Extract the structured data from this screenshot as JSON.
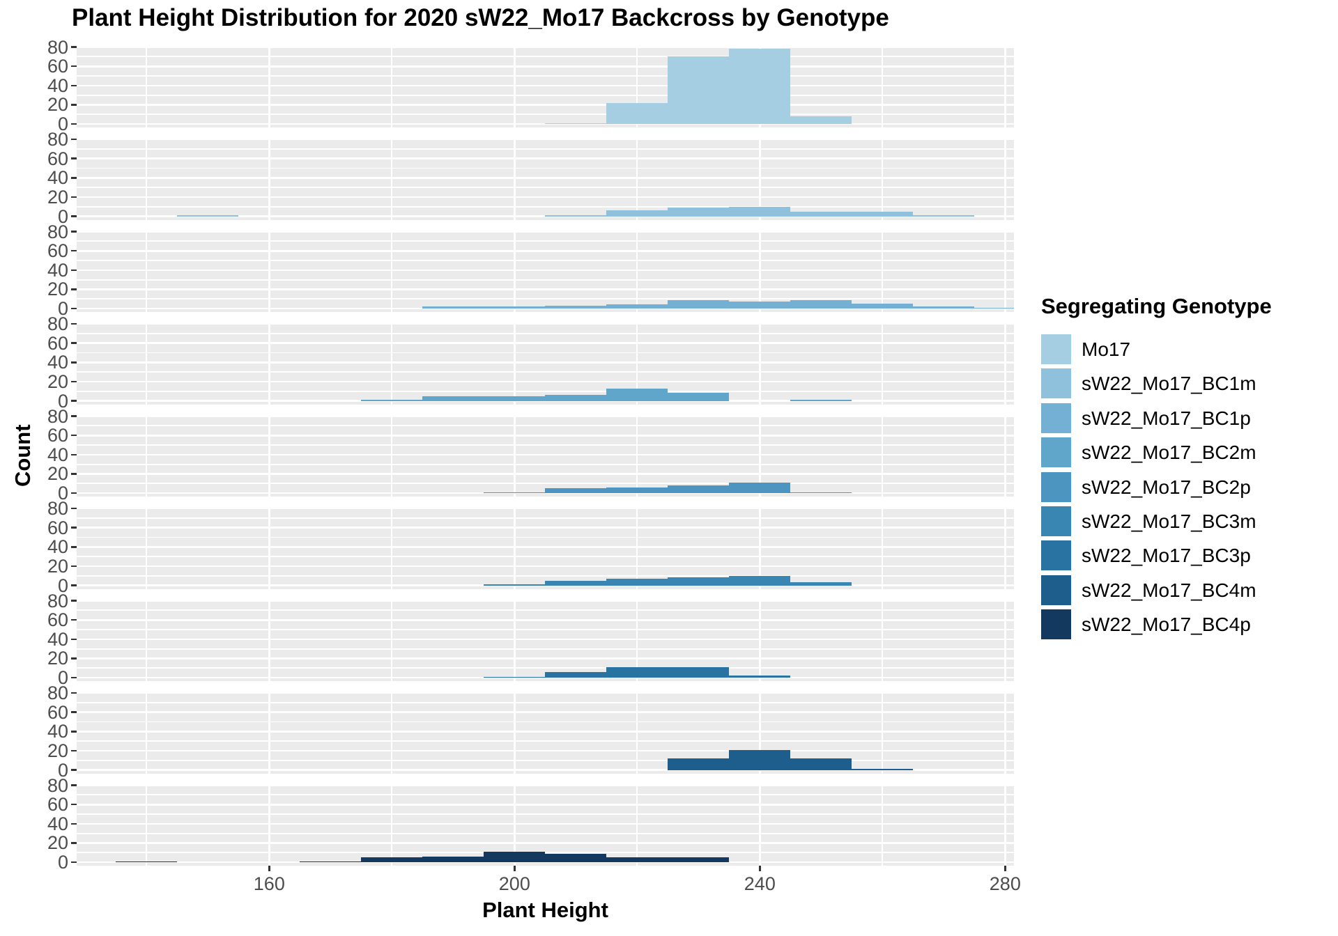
{
  "title": "Plant Height Distribution for 2020 sW22_Mo17 Backcross by Genotype",
  "axes": {
    "x_title": "Plant Height",
    "y_title": "Count",
    "x_tick_labels": [
      "160",
      "200",
      "240",
      "280"
    ],
    "x_tick_values": [
      160,
      200,
      240,
      280
    ],
    "y_tick_labels": [
      "80",
      "60",
      "40",
      "20",
      "0"
    ],
    "y_tick_values": [
      80,
      60,
      40,
      20,
      0
    ],
    "tick_label_color": "#4d4d4d"
  },
  "legend": {
    "title": "Segregating Genotype",
    "entries": [
      {
        "label": "Mo17",
        "color": "#a6cee3"
      },
      {
        "label": "sW22_Mo17_BC1m",
        "color": "#8fc1dc"
      },
      {
        "label": "sW22_Mo17_BC1p",
        "color": "#74b0d3"
      },
      {
        "label": "sW22_Mo17_BC2m",
        "color": "#60a5ca"
      },
      {
        "label": "sW22_Mo17_BC2p",
        "color": "#4c95c0"
      },
      {
        "label": "sW22_Mo17_BC3m",
        "color": "#3a86b3"
      },
      {
        "label": "sW22_Mo17_BC3p",
        "color": "#2973a3"
      },
      {
        "label": "sW22_Mo17_BC4m",
        "color": "#1e5e8d"
      },
      {
        "label": "sW22_Mo17_BC4p",
        "color": "#14395e"
      }
    ]
  },
  "chart_data": {
    "type": "bar",
    "subtype": "faceted-histogram",
    "title": "Plant Height Distribution for 2020 sW22_Mo17 Backcross by Genotype",
    "xlabel": "Plant Height",
    "ylabel": "Count",
    "bin_width": 10,
    "x_domain": [
      128.6,
      281.5
    ],
    "y_domain_per_panel": [
      0,
      82
    ],
    "x_gridlines": [
      140,
      160,
      180,
      200,
      220,
      240,
      260,
      280
    ],
    "x_major_gridlines": [
      160,
      200,
      240,
      280
    ],
    "y_gridlines": [
      0,
      10,
      20,
      30,
      40,
      50,
      60,
      70,
      80
    ],
    "y_major_gridlines": [
      0,
      20,
      40,
      60,
      80
    ],
    "grid": true,
    "legend_position": "right",
    "panel_background": "#ebebeb",
    "facets": [
      {
        "genotype": "Mo17",
        "color": "#a6cee3",
        "bins": [
          [
            205,
            1
          ],
          [
            215,
            22
          ],
          [
            225,
            70
          ],
          [
            235,
            78
          ],
          [
            245,
            8
          ]
        ]
      },
      {
        "genotype": "sW22_Mo17_BC1m",
        "color": "#8fc1dc",
        "bins": [
          [
            145,
            1
          ],
          [
            205,
            1
          ],
          [
            215,
            6
          ],
          [
            225,
            9
          ],
          [
            235,
            10
          ],
          [
            245,
            5
          ],
          [
            255,
            5
          ],
          [
            265,
            1
          ]
        ]
      },
      {
        "genotype": "sW22_Mo17_BC1p",
        "color": "#74b0d3",
        "bins": [
          [
            185,
            2
          ],
          [
            195,
            2
          ],
          [
            205,
            3
          ],
          [
            215,
            4
          ],
          [
            225,
            9
          ],
          [
            235,
            7
          ],
          [
            245,
            9
          ],
          [
            255,
            5
          ],
          [
            265,
            2
          ],
          [
            275,
            1
          ]
        ]
      },
      {
        "genotype": "sW22_Mo17_BC2m",
        "color": "#60a5ca",
        "bins": [
          [
            175,
            1
          ],
          [
            185,
            5
          ],
          [
            195,
            5
          ],
          [
            205,
            6
          ],
          [
            215,
            13
          ],
          [
            225,
            8
          ],
          [
            245,
            1
          ]
        ]
      },
      {
        "genotype": "sW22_Mo17_BC2p",
        "color": "#4c95c0",
        "bins": [
          [
            195,
            1
          ],
          [
            205,
            5
          ],
          [
            215,
            6
          ],
          [
            225,
            8
          ],
          [
            235,
            11
          ],
          [
            245,
            1
          ]
        ]
      },
      {
        "genotype": "sW22_Mo17_BC3m",
        "color": "#3a86b3",
        "bins": [
          [
            195,
            1
          ],
          [
            205,
            5
          ],
          [
            215,
            7
          ],
          [
            225,
            8
          ],
          [
            235,
            10
          ],
          [
            245,
            3
          ]
        ]
      },
      {
        "genotype": "sW22_Mo17_BC3p",
        "color": "#2973a3",
        "bins": [
          [
            195,
            1
          ],
          [
            205,
            6
          ],
          [
            215,
            11
          ],
          [
            225,
            11
          ],
          [
            235,
            2
          ]
        ]
      },
      {
        "genotype": "sW22_Mo17_BC4m",
        "color": "#1e5e8d",
        "bins": [
          [
            225,
            12
          ],
          [
            235,
            21
          ],
          [
            245,
            12
          ],
          [
            255,
            1
          ]
        ]
      },
      {
        "genotype": "sW22_Mo17_BC4p",
        "color": "#14395e",
        "bins": [
          [
            135,
            1
          ],
          [
            165,
            1
          ],
          [
            175,
            5
          ],
          [
            185,
            6
          ],
          [
            195,
            11
          ],
          [
            205,
            9
          ],
          [
            215,
            5
          ],
          [
            225,
            5
          ]
        ]
      }
    ]
  }
}
